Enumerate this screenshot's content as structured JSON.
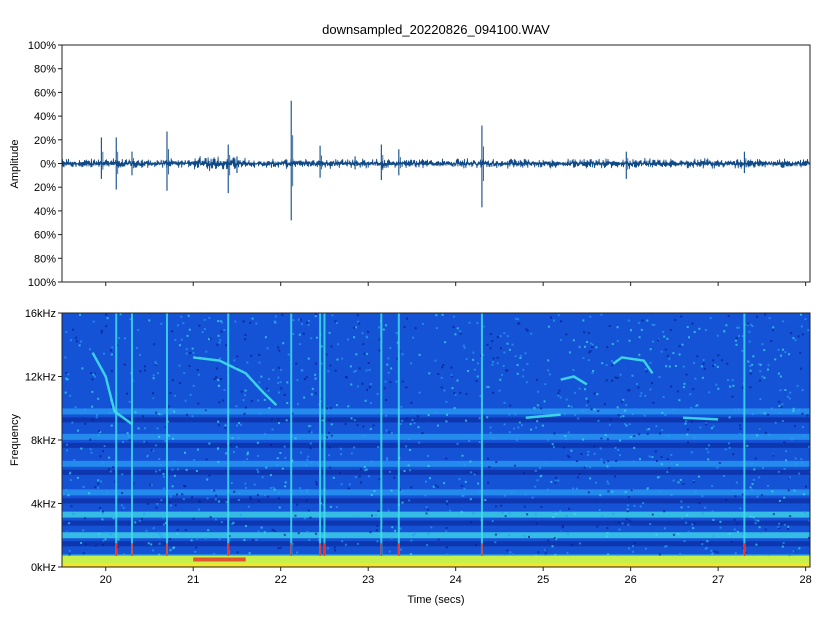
{
  "chart_data": [
    {
      "type": "line",
      "panel": "waveform",
      "title": "downsampled_20220826_094100.WAV",
      "ylabel": "Amplitude",
      "ylim": [
        -100,
        100
      ],
      "y_ticks": [
        {
          "value": 100,
          "label": "100%"
        },
        {
          "value": 80,
          "label": "80%"
        },
        {
          "value": 60,
          "label": "60%"
        },
        {
          "value": 40,
          "label": "40%"
        },
        {
          "value": 20,
          "label": "20%"
        },
        {
          "value": 0,
          "label": "0%"
        },
        {
          "value": -20,
          "label": "20%"
        },
        {
          "value": -40,
          "label": "40%"
        },
        {
          "value": -60,
          "label": "60%"
        },
        {
          "value": -80,
          "label": "80%"
        },
        {
          "value": -100,
          "label": "100%"
        }
      ],
      "xlim": [
        19.5,
        28.05
      ],
      "noise_level": 3,
      "spikes": [
        {
          "x": 19.95,
          "y": 22,
          "ymin": -13
        },
        {
          "x": 20.12,
          "y": 22,
          "ymin": -22
        },
        {
          "x": 20.3,
          "y": 10,
          "ymin": -10
        },
        {
          "x": 20.7,
          "y": 27,
          "ymin": -23
        },
        {
          "x": 21.4,
          "y": 16,
          "ymin": -25
        },
        {
          "x": 21.5,
          "y": 6,
          "ymin": -8
        },
        {
          "x": 22.12,
          "y": 53,
          "ymin": -48
        },
        {
          "x": 22.45,
          "y": 15,
          "ymin": -12
        },
        {
          "x": 22.85,
          "y": 6,
          "ymin": -5
        },
        {
          "x": 23.15,
          "y": 16,
          "ymin": -14
        },
        {
          "x": 23.35,
          "y": 12,
          "ymin": -10
        },
        {
          "x": 24.3,
          "y": 32,
          "ymin": -37
        },
        {
          "x": 25.95,
          "y": 10,
          "ymin": -13
        },
        {
          "x": 27.3,
          "y": 10,
          "ymin": -8
        }
      ]
    },
    {
      "type": "heatmap",
      "panel": "spectrogram",
      "xlabel": "Time (secs)",
      "ylabel": "Frequency",
      "xlim": [
        19.5,
        28.05
      ],
      "ylim": [
        0,
        16000
      ],
      "x_ticks": [
        20,
        21,
        22,
        23,
        24,
        25,
        26,
        27,
        28
      ],
      "y_ticks": [
        {
          "value": 0,
          "label": "0kHz"
        },
        {
          "value": 4000,
          "label": "4kHz"
        },
        {
          "value": 8000,
          "label": "8kHz"
        },
        {
          "value": 12000,
          "label": "12kHz"
        },
        {
          "value": 16000,
          "label": "16kHz"
        }
      ],
      "colormap": [
        "#0a1f8f",
        "#1452d6",
        "#2a9df4",
        "#3fe0e8",
        "#c8f04a",
        "#f5e62a",
        "#e8302a"
      ],
      "vertical_clicks": [
        20.12,
        20.3,
        20.7,
        21.4,
        22.12,
        22.45,
        22.5,
        23.15,
        23.35,
        24.3,
        27.3
      ],
      "horizontal_bands_hz": [
        600,
        2000,
        3300,
        4700,
        6500,
        8200,
        9800
      ],
      "chirp_traces": [
        {
          "points": [
            [
              19.85,
              13500
            ],
            [
              20.0,
              12000
            ],
            [
              20.1,
              9800
            ],
            [
              20.3,
              9000
            ]
          ]
        },
        {
          "points": [
            [
              21.0,
              13200
            ],
            [
              21.3,
              13000
            ],
            [
              21.6,
              12200
            ],
            [
              21.8,
              11000
            ],
            [
              21.95,
              10200
            ]
          ]
        },
        {
          "points": [
            [
              25.2,
              11800
            ],
            [
              25.35,
              12000
            ],
            [
              25.5,
              11500
            ]
          ]
        },
        {
          "points": [
            [
              25.8,
              12800
            ],
            [
              25.9,
              13200
            ],
            [
              26.15,
              13000
            ],
            [
              26.25,
              12200
            ]
          ]
        },
        {
          "points": [
            [
              24.8,
              9400
            ],
            [
              25.2,
              9600
            ]
          ]
        },
        {
          "points": [
            [
              26.6,
              9400
            ],
            [
              27.0,
              9300
            ]
          ]
        }
      ]
    }
  ]
}
